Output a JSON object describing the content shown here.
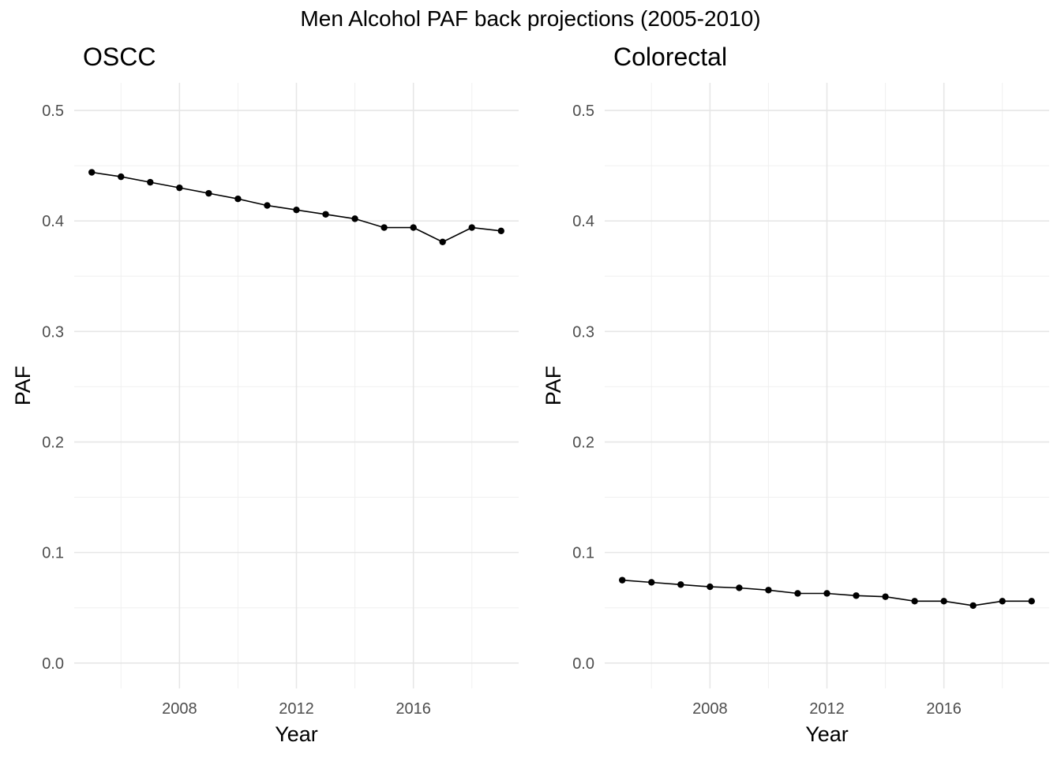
{
  "title": "Men Alcohol PAF back projections (2005-2010)",
  "chart_data": [
    {
      "type": "line",
      "title": "OSCC",
      "xlabel": "Year",
      "ylabel": "PAF",
      "xlim": [
        2004.4,
        2019.6
      ],
      "ylim": [
        -0.023,
        0.525
      ],
      "x_ticks": [
        2008,
        2012,
        2016
      ],
      "x_ticks_minor": [
        2006,
        2010,
        2014,
        2018
      ],
      "y_ticks": [
        0.0,
        0.1,
        0.2,
        0.3,
        0.4,
        0.5
      ],
      "y_tick_labels": [
        "0.0",
        "0.1",
        "0.2",
        "0.3",
        "0.4",
        "0.5"
      ],
      "x_tick_labels": [
        "2008",
        "2012",
        "2016"
      ],
      "grid": true,
      "series": [
        {
          "x": [
            2005,
            2006,
            2007,
            2008,
            2009,
            2010,
            2011,
            2012,
            2013,
            2014,
            2015,
            2016,
            2017,
            2018,
            2019
          ],
          "values": [
            0.444,
            0.44,
            0.435,
            0.43,
            0.425,
            0.42,
            0.414,
            0.41,
            0.406,
            0.402,
            0.394,
            0.394,
            0.381,
            0.394,
            0.391
          ]
        }
      ]
    },
    {
      "type": "line",
      "title": "Colorectal",
      "xlabel": "Year",
      "ylabel": "PAF",
      "xlim": [
        2004.4,
        2019.6
      ],
      "ylim": [
        -0.023,
        0.525
      ],
      "x_ticks": [
        2008,
        2012,
        2016
      ],
      "x_ticks_minor": [
        2006,
        2010,
        2014,
        2018
      ],
      "y_ticks": [
        0.0,
        0.1,
        0.2,
        0.3,
        0.4,
        0.5
      ],
      "y_tick_labels": [
        "0.0",
        "0.1",
        "0.2",
        "0.3",
        "0.4",
        "0.5"
      ],
      "x_tick_labels": [
        "2008",
        "2012",
        "2016"
      ],
      "grid": true,
      "series": [
        {
          "x": [
            2005,
            2006,
            2007,
            2008,
            2009,
            2010,
            2011,
            2012,
            2013,
            2014,
            2015,
            2016,
            2017,
            2018,
            2019
          ],
          "values": [
            0.075,
            0.073,
            0.071,
            0.069,
            0.068,
            0.066,
            0.063,
            0.063,
            0.061,
            0.06,
            0.056,
            0.056,
            0.052,
            0.056,
            0.056
          ]
        }
      ]
    }
  ]
}
